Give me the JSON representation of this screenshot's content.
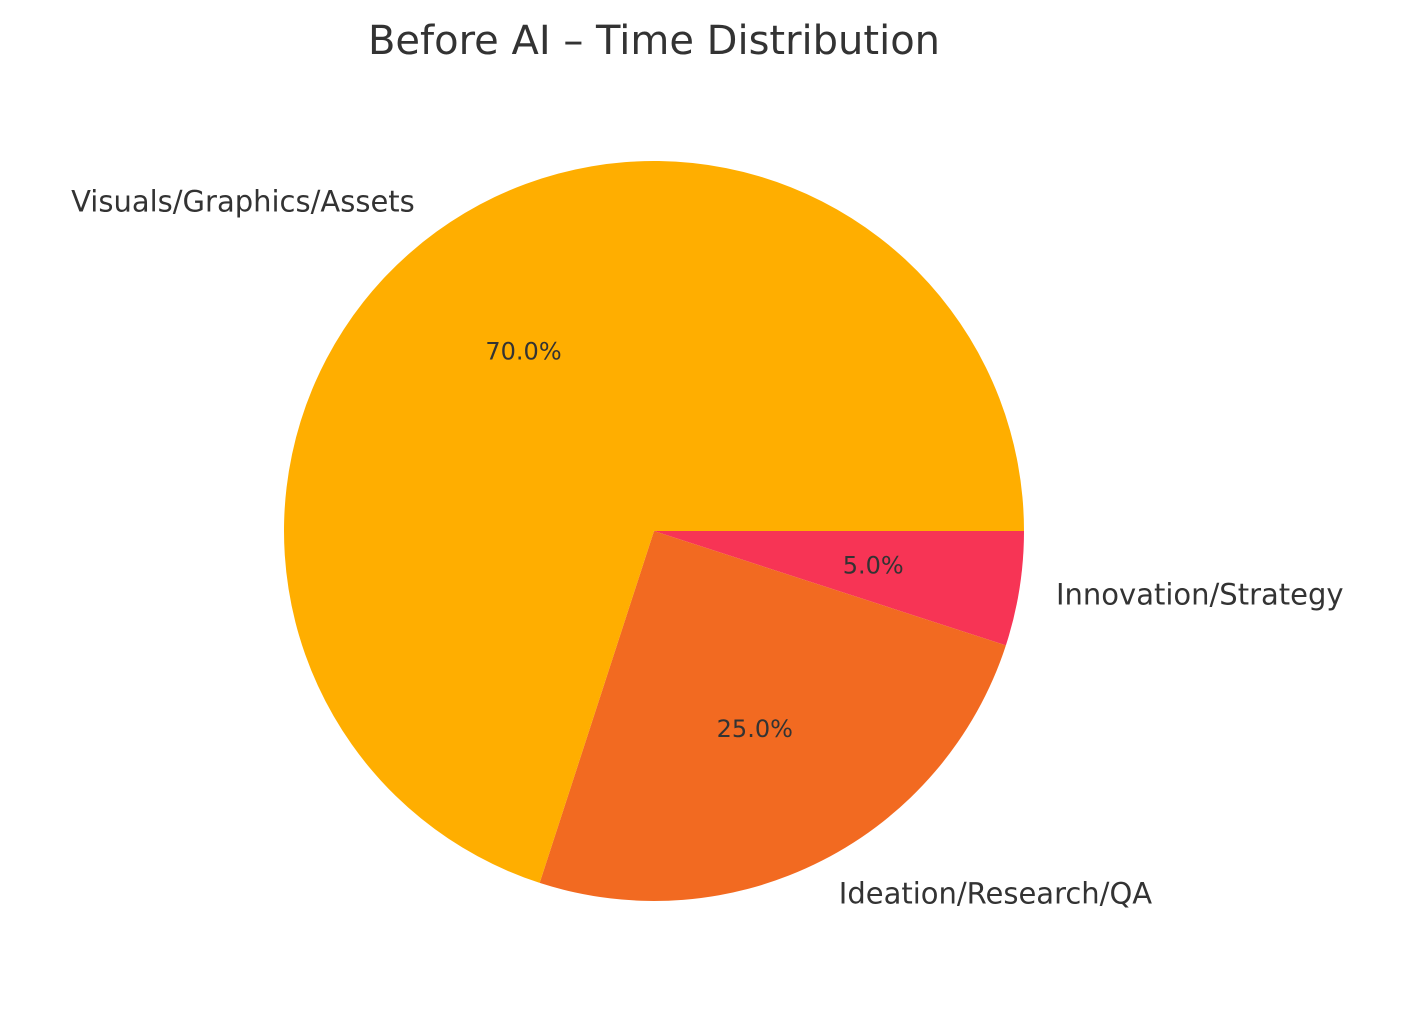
{
  "chart_data": {
    "type": "pie",
    "title": "Before AI – Time Distribution",
    "slices": [
      {
        "label": "Innovation/Strategy",
        "value": 5.0,
        "pct_label": "5.0%",
        "color": "#F73455"
      },
      {
        "label": "Ideation/Research/QA",
        "value": 25.0,
        "pct_label": "25.0%",
        "color": "#F26A21"
      },
      {
        "label": "Visuals/Graphics/Assets",
        "value": 70.0,
        "pct_label": "70.0%",
        "color": "#FFAE00"
      }
    ],
    "start_angle_deg": 0,
    "direction": "clockwise",
    "legend": "none"
  }
}
